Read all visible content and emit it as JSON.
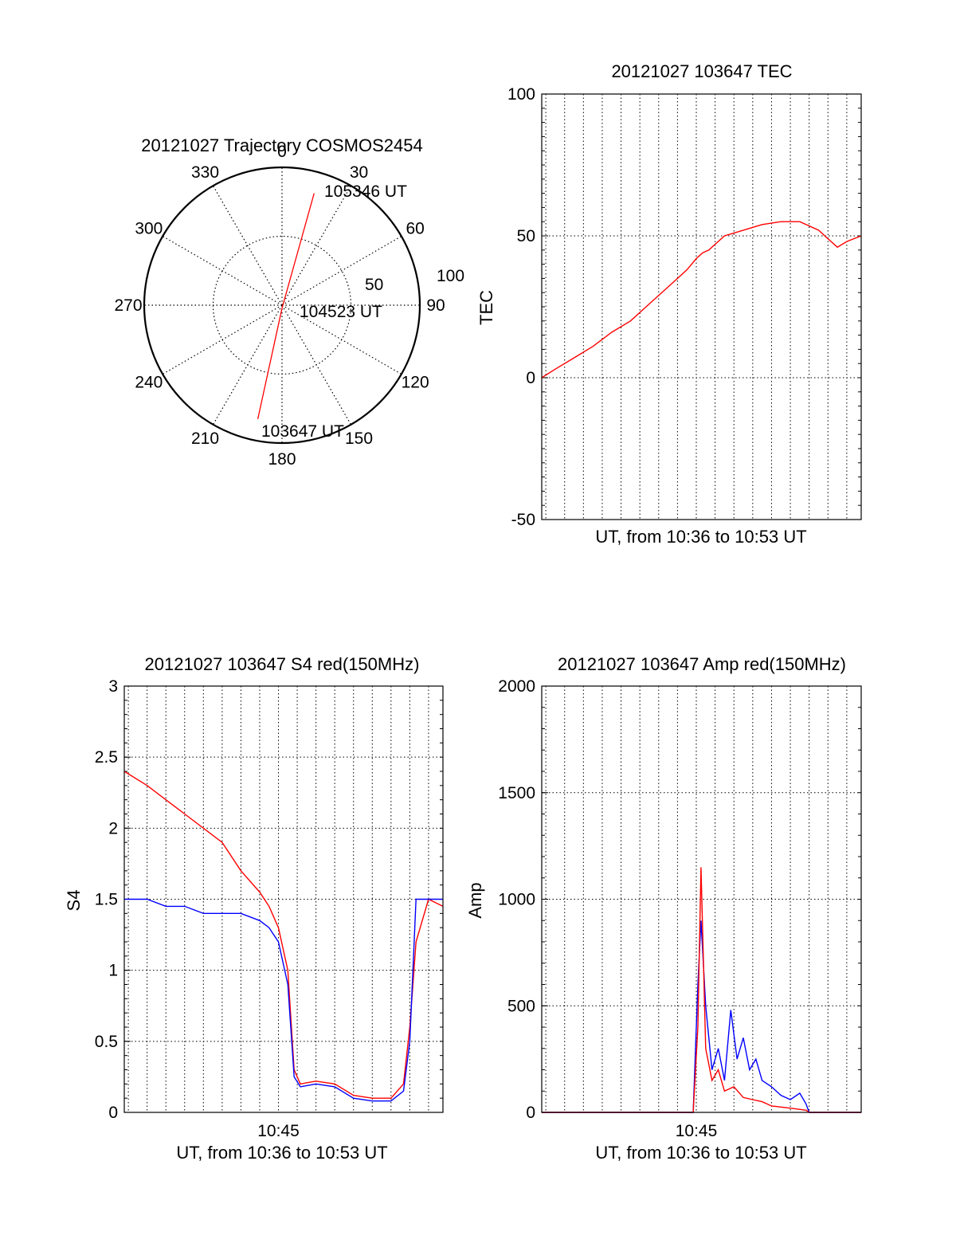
{
  "chart_data": [
    {
      "id": "trajectory",
      "type": "polar",
      "title": "20121027 Trajectory COSMOS2454",
      "angle_labels": [
        "0",
        "30",
        "60",
        "90",
        "120",
        "150",
        "180",
        "210",
        "240",
        "270",
        "300",
        "330"
      ],
      "radius_labels": [
        "50",
        "100"
      ],
      "rlim": [
        0,
        100
      ],
      "grid": true,
      "annotations": [
        "105346 UT",
        "104523 UT",
        "103647 UT"
      ],
      "track_color": "#ff0000",
      "track": [
        {
          "azimuth": 16,
          "elevation": 14,
          "label": "105346 UT"
        },
        {
          "azimuth": 180,
          "elevation": 88,
          "label": "104523 UT"
        },
        {
          "azimuth": 192,
          "elevation": 14,
          "label": "103647 UT"
        }
      ]
    },
    {
      "id": "tec",
      "type": "line",
      "title": "20121027 103647 TEC",
      "xlabel": "UT, from 10:36 to 10:53 UT",
      "ylabel": "TEC",
      "xlim": [
        "10:36:47",
        "10:53:46"
      ],
      "ylim": [
        -50,
        100
      ],
      "yticks": [
        "-50",
        "0",
        "50",
        "100"
      ],
      "grid": true,
      "series": [
        {
          "color": "#ff0000",
          "x": [
            "10:36:47",
            "10:37:30",
            "10:38:30",
            "10:39:30",
            "10:40:30",
            "10:41:30",
            "10:42:30",
            "10:43:30",
            "10:44:30",
            "10:45:00",
            "10:45:20",
            "10:45:40",
            "10:46:30",
            "10:47:30",
            "10:48:30",
            "10:49:30",
            "10:50:30",
            "10:51:30",
            "10:52:00",
            "10:52:30",
            "10:53:00",
            "10:53:46"
          ],
          "y": [
            0,
            3,
            7,
            11,
            16,
            20,
            26,
            32,
            38,
            42,
            44,
            45,
            50,
            52,
            54,
            55,
            55,
            52,
            49,
            46,
            48,
            50
          ]
        }
      ]
    },
    {
      "id": "s4",
      "type": "line",
      "title": "20121027 103647 S4 red(150MHz)",
      "xlabel": "UT, from 10:36 to 10:53 UT",
      "ylabel": "S4",
      "xtick_labels": [
        "10:45"
      ],
      "xlim": [
        "10:36:47",
        "10:53:46"
      ],
      "ylim": [
        0,
        3
      ],
      "yticks": [
        "0",
        "0.5",
        "1",
        "1.5",
        "2",
        "2.5",
        "3"
      ],
      "grid": true,
      "series": [
        {
          "color": "#ff0000",
          "x": [
            "10:36:47",
            "10:38:00",
            "10:39:00",
            "10:40:00",
            "10:41:00",
            "10:42:00",
            "10:43:00",
            "10:44:00",
            "10:44:30",
            "10:45:00",
            "10:45:30",
            "10:45:50",
            "10:46:10",
            "10:47:00",
            "10:48:00",
            "10:49:00",
            "10:50:00",
            "10:51:00",
            "10:51:40",
            "10:52:00",
            "10:52:20",
            "10:53:00",
            "10:53:46"
          ],
          "y": [
            2.4,
            2.3,
            2.2,
            2.1,
            2.0,
            1.9,
            1.7,
            1.55,
            1.45,
            1.3,
            1.0,
            0.3,
            0.2,
            0.22,
            0.2,
            0.12,
            0.1,
            0.1,
            0.2,
            0.6,
            1.2,
            1.5,
            1.45
          ]
        },
        {
          "color": "#0000ff",
          "x": [
            "10:36:47",
            "10:38:00",
            "10:39:00",
            "10:40:00",
            "10:41:00",
            "10:42:00",
            "10:43:00",
            "10:44:00",
            "10:44:30",
            "10:45:00",
            "10:45:30",
            "10:45:50",
            "10:46:10",
            "10:47:00",
            "10:48:00",
            "10:49:00",
            "10:50:00",
            "10:51:00",
            "10:51:40",
            "10:52:00",
            "10:52:20",
            "10:53:00",
            "10:53:46"
          ],
          "y": [
            1.5,
            1.5,
            1.45,
            1.45,
            1.4,
            1.4,
            1.4,
            1.35,
            1.3,
            1.2,
            0.9,
            0.25,
            0.18,
            0.2,
            0.18,
            0.1,
            0.08,
            0.08,
            0.15,
            0.5,
            1.5,
            1.5,
            1.5
          ]
        }
      ]
    },
    {
      "id": "amp",
      "type": "line",
      "title": "20121027 103647 Amp red(150MHz)",
      "xlabel": "UT, from 10:36 to 10:53 UT",
      "ylabel": "Amp",
      "xtick_labels": [
        "10:45"
      ],
      "xlim": [
        "10:36:47",
        "10:53:46"
      ],
      "ylim": [
        0,
        2000
      ],
      "yticks": [
        "0",
        "500",
        "1000",
        "1500",
        "2000"
      ],
      "grid": true,
      "series": [
        {
          "color": "#0000ff",
          "x": [
            "10:36:47",
            "10:44:50",
            "10:45:05",
            "10:45:15",
            "10:45:30",
            "10:45:50",
            "10:46:10",
            "10:46:30",
            "10:46:50",
            "10:47:10",
            "10:47:30",
            "10:47:50",
            "10:48:10",
            "10:48:30",
            "10:49:00",
            "10:49:30",
            "10:50:00",
            "10:50:30",
            "10:50:50",
            "10:51:00",
            "10:53:46"
          ],
          "y": [
            0,
            0,
            600,
            900,
            500,
            200,
            300,
            150,
            480,
            250,
            350,
            200,
            250,
            150,
            120,
            80,
            60,
            90,
            40,
            0,
            0
          ]
        },
        {
          "color": "#ff0000",
          "x": [
            "10:36:47",
            "10:44:50",
            "10:45:05",
            "10:45:15",
            "10:45:30",
            "10:45:50",
            "10:46:10",
            "10:46:30",
            "10:47:00",
            "10:47:30",
            "10:48:00",
            "10:48:30",
            "10:49:00",
            "10:50:00",
            "10:50:50",
            "10:51:00",
            "10:53:46"
          ],
          "y": [
            0,
            0,
            400,
            1150,
            300,
            150,
            200,
            100,
            120,
            70,
            60,
            50,
            30,
            20,
            10,
            0,
            0
          ]
        }
      ]
    }
  ]
}
